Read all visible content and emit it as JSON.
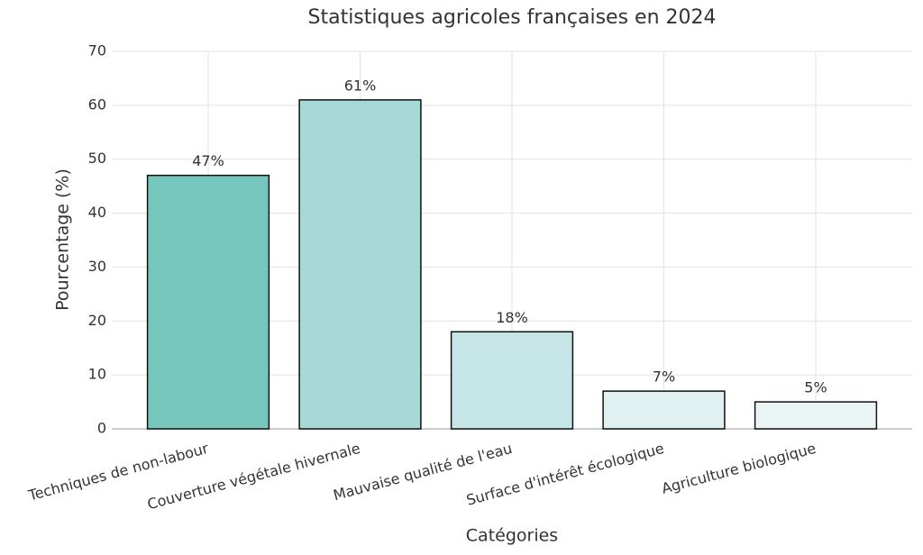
{
  "chart_data": {
    "type": "bar",
    "title": "Statistiques agricoles françaises en 2024",
    "xlabel": "Catégories",
    "ylabel": "Pourcentage (%)",
    "categories": [
      "Techniques de non-labour",
      "Couverture végétale hivernale",
      "Mauvaise qualité de l'eau",
      "Surface d'intérêt écologique",
      "Agriculture biologique"
    ],
    "values": [
      47,
      61,
      18,
      7,
      5
    ],
    "value_labels": [
      "47%",
      "61%",
      "18%",
      "7%",
      "5%"
    ],
    "colors": [
      "#76c6be",
      "#a6d8d7",
      "#c6e5e6",
      "#e0f1f1",
      "#ebf4f5"
    ],
    "ylim": [
      0,
      70
    ],
    "yticks": [
      0,
      10,
      20,
      30,
      40,
      50,
      60,
      70
    ],
    "grid": true
  }
}
